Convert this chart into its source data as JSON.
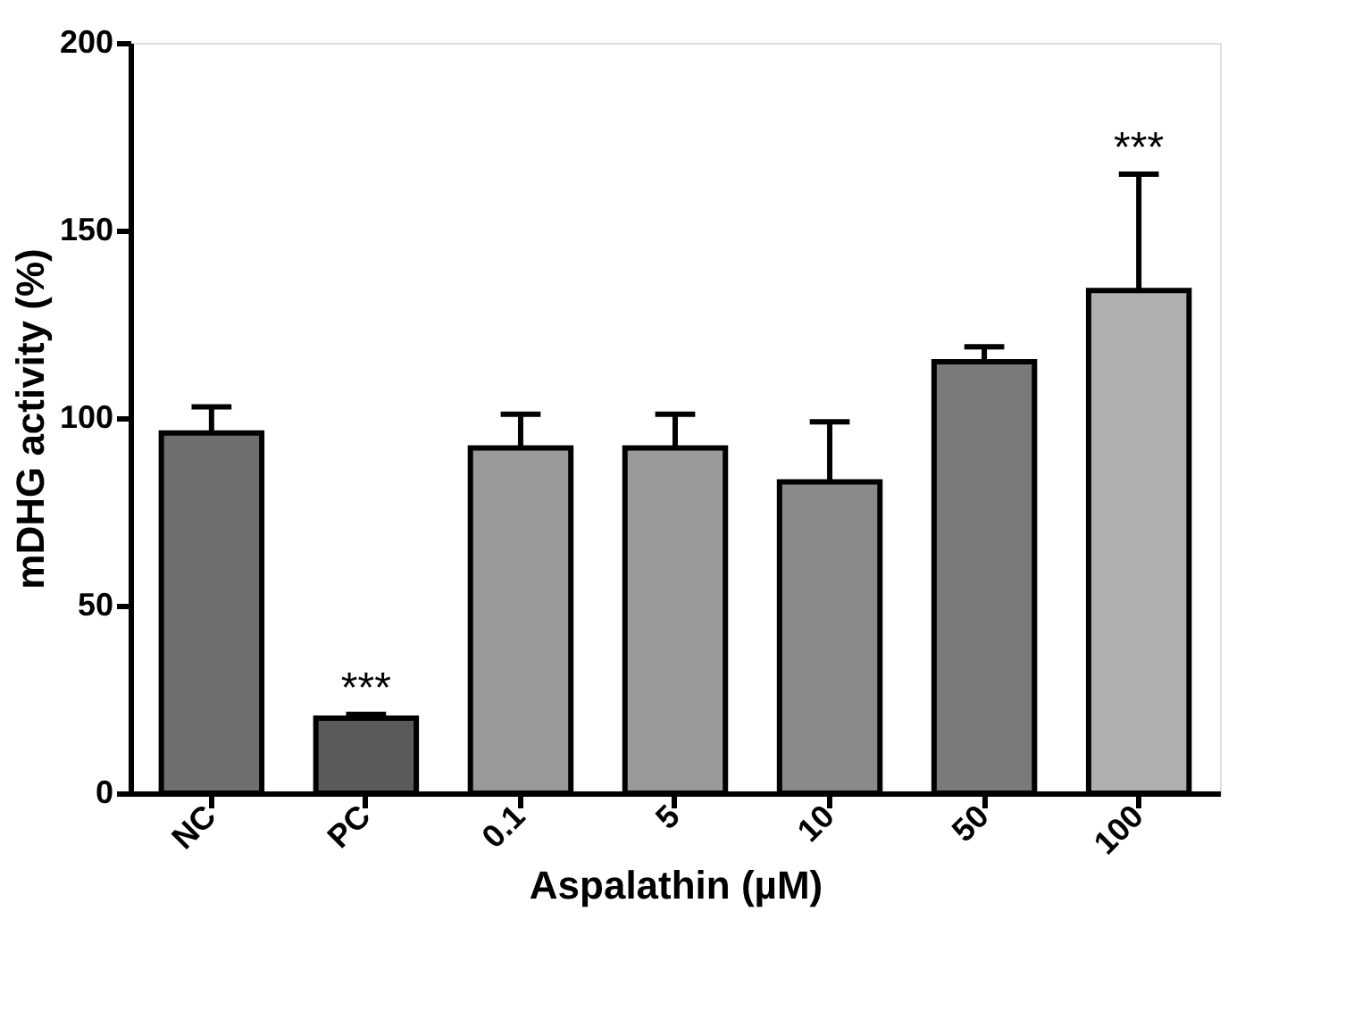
{
  "chart_data": {
    "type": "bar",
    "xlabel": "Aspalathin (µM)",
    "ylabel": "mDHG activity (%)",
    "categories": [
      "NC",
      "PC",
      "0.1",
      "5",
      "10",
      "50",
      "100"
    ],
    "values": [
      96,
      20,
      92,
      92,
      83,
      115,
      134
    ],
    "errors": [
      [
        96,
        103
      ],
      [
        20,
        21
      ],
      [
        92,
        101
      ],
      [
        92,
        101
      ],
      [
        83,
        99
      ],
      [
        115,
        119
      ],
      [
        134,
        165
      ]
    ],
    "colors": [
      "#6e6e6e",
      "#5a5a5a",
      "#9a9a9a",
      "#9a9a9a",
      "#8a8a8a",
      "#7a7a7a",
      "#b0b0b0"
    ],
    "value_labels": [
      null,
      "***",
      null,
      null,
      null,
      null,
      "***"
    ],
    "ylim": [
      0,
      200
    ],
    "yticks": [
      0,
      50,
      100,
      150,
      200
    ],
    "grid": false
  }
}
